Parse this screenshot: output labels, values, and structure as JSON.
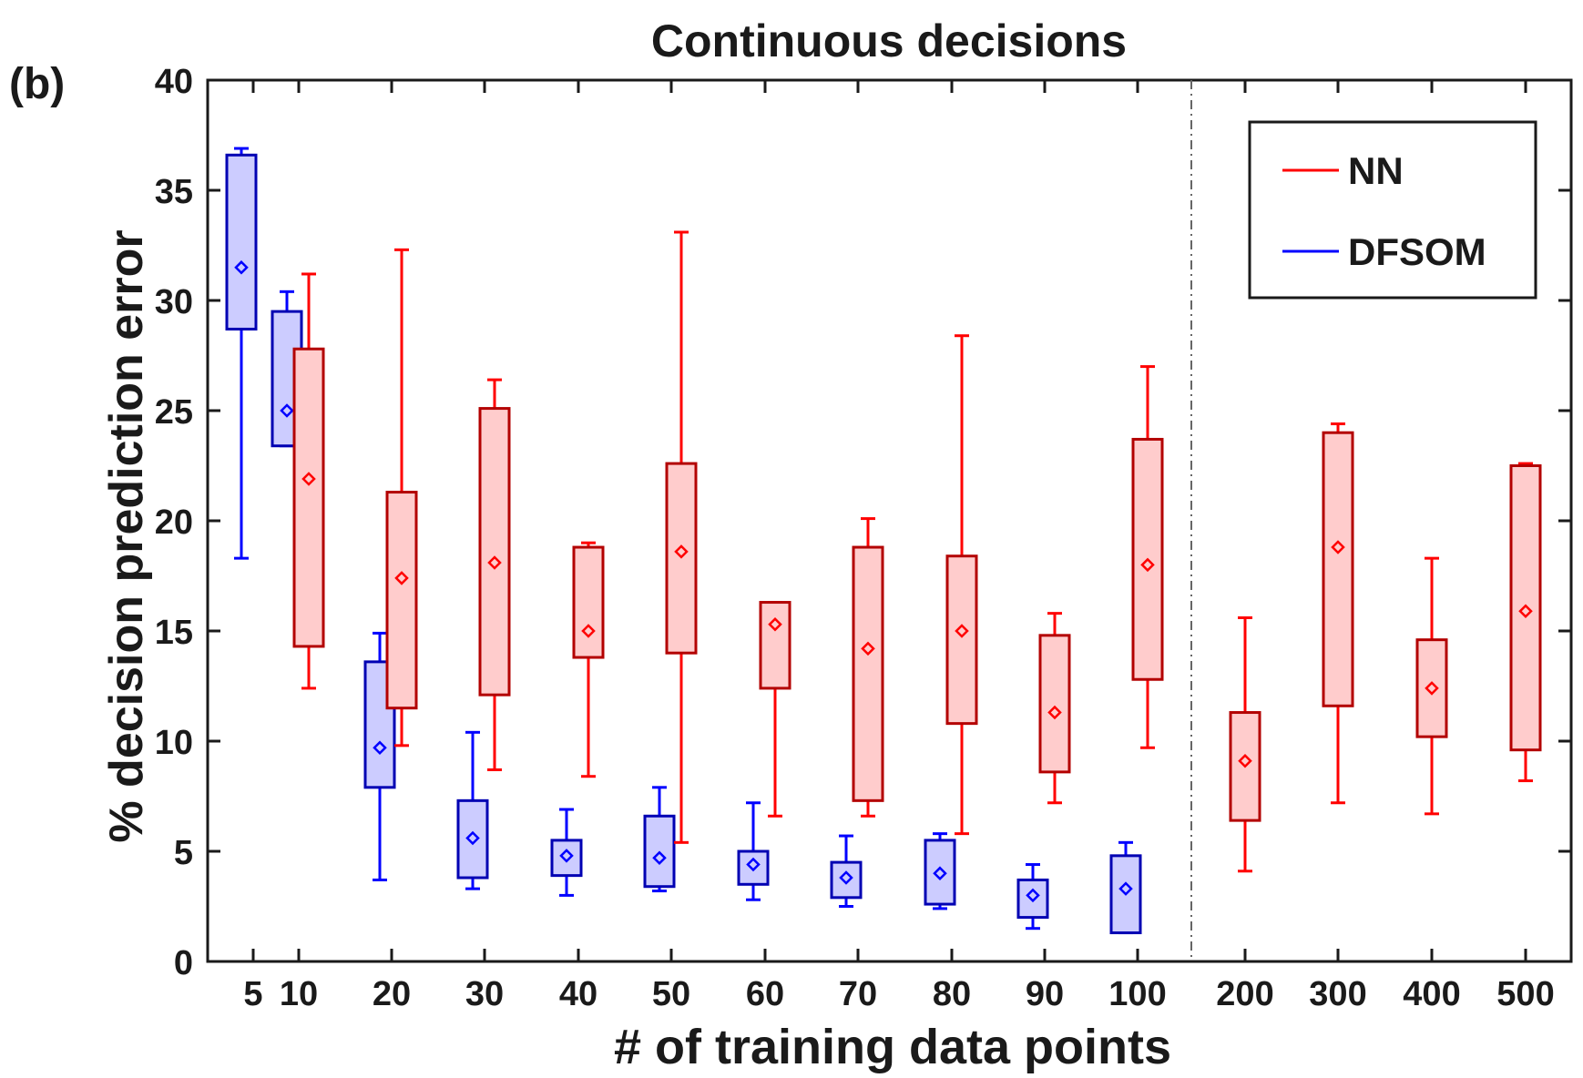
{
  "chart_data": {
    "type": "box",
    "panel_label": "(b)",
    "title": "Continuous decisions",
    "xlabel": "# of training data points",
    "ylabel": "% decision prediction error",
    "ylim": [
      0,
      40
    ],
    "yticks": [
      0,
      5,
      10,
      15,
      20,
      25,
      30,
      35,
      40
    ],
    "categories": [
      "5",
      "10",
      "20",
      "30",
      "40",
      "50",
      "60",
      "70",
      "80",
      "90",
      "100",
      "200",
      "300",
      "400",
      "500"
    ],
    "divider_after": "100",
    "colors": {
      "nn": "#ff0000",
      "nn_fill": "#ffcccc",
      "nn_box": "#b30000",
      "dfsom": "#0000ff",
      "dfsom_fill": "#ccccff",
      "dfsom_box": "#0000b3",
      "axis": "#1a1a1a",
      "divider": "#666666"
    },
    "legend": {
      "position": "top-right",
      "entries": [
        "NN",
        "DFSOM"
      ]
    },
    "series": [
      {
        "name": "DFSOM",
        "boxes": [
          {
            "category": "5",
            "whisker_low": 18.3,
            "q1": 28.7,
            "mean": 31.5,
            "q3": 36.6,
            "whisker_high": 36.9
          },
          {
            "category": "10",
            "whisker_low": 23.4,
            "q1": 23.4,
            "mean": 25.0,
            "q3": 29.5,
            "whisker_high": 30.4
          },
          {
            "category": "20",
            "whisker_low": 3.7,
            "q1": 7.9,
            "mean": 9.7,
            "q3": 13.6,
            "whisker_high": 14.9
          },
          {
            "category": "30",
            "whisker_low": 3.3,
            "q1": 3.8,
            "mean": 5.6,
            "q3": 7.3,
            "whisker_high": 10.4
          },
          {
            "category": "40",
            "whisker_low": 3.0,
            "q1": 3.9,
            "mean": 4.8,
            "q3": 5.5,
            "whisker_high": 6.9
          },
          {
            "category": "50",
            "whisker_low": 3.2,
            "q1": 3.4,
            "mean": 4.7,
            "q3": 6.6,
            "whisker_high": 7.9
          },
          {
            "category": "60",
            "whisker_low": 2.8,
            "q1": 3.5,
            "mean": 4.4,
            "q3": 5.0,
            "whisker_high": 7.2
          },
          {
            "category": "70",
            "whisker_low": 2.5,
            "q1": 2.9,
            "mean": 3.8,
            "q3": 4.5,
            "whisker_high": 5.7
          },
          {
            "category": "80",
            "whisker_low": 2.4,
            "q1": 2.6,
            "mean": 4.0,
            "q3": 5.5,
            "whisker_high": 5.8
          },
          {
            "category": "90",
            "whisker_low": 1.5,
            "q1": 2.0,
            "mean": 3.0,
            "q3": 3.7,
            "whisker_high": 4.4
          },
          {
            "category": "100",
            "whisker_low": 1.3,
            "q1": 1.3,
            "mean": 3.3,
            "q3": 4.8,
            "whisker_high": 5.4
          }
        ]
      },
      {
        "name": "NN",
        "boxes": [
          {
            "category": "10",
            "whisker_low": 12.4,
            "q1": 14.3,
            "mean": 21.9,
            "q3": 27.8,
            "whisker_high": 31.2
          },
          {
            "category": "20",
            "whisker_low": 9.8,
            "q1": 11.5,
            "mean": 17.4,
            "q3": 21.3,
            "whisker_high": 32.3
          },
          {
            "category": "30",
            "whisker_low": 8.7,
            "q1": 12.1,
            "mean": 18.1,
            "q3": 25.1,
            "whisker_high": 26.4
          },
          {
            "category": "40",
            "whisker_low": 8.4,
            "q1": 13.8,
            "mean": 15.0,
            "q3": 18.8,
            "whisker_high": 19.0
          },
          {
            "category": "50",
            "whisker_low": 5.4,
            "q1": 14.0,
            "mean": 18.6,
            "q3": 22.6,
            "whisker_high": 33.1
          },
          {
            "category": "60",
            "whisker_low": 6.6,
            "q1": 12.4,
            "mean": 15.3,
            "q3": 16.3,
            "whisker_high": 16.3
          },
          {
            "category": "70",
            "whisker_low": 6.6,
            "q1": 7.3,
            "mean": 14.2,
            "q3": 18.8,
            "whisker_high": 20.1
          },
          {
            "category": "80",
            "whisker_low": 5.8,
            "q1": 10.8,
            "mean": 15.0,
            "q3": 18.4,
            "whisker_high": 28.4
          },
          {
            "category": "90",
            "whisker_low": 7.2,
            "q1": 8.6,
            "mean": 11.3,
            "q3": 14.8,
            "whisker_high": 15.8
          },
          {
            "category": "100",
            "whisker_low": 9.7,
            "q1": 12.8,
            "mean": 18.0,
            "q3": 23.7,
            "whisker_high": 27.0
          },
          {
            "category": "200",
            "whisker_low": 4.1,
            "q1": 6.4,
            "mean": 9.1,
            "q3": 11.3,
            "whisker_high": 15.6
          },
          {
            "category": "300",
            "whisker_low": 7.2,
            "q1": 11.6,
            "mean": 18.8,
            "q3": 24.0,
            "whisker_high": 24.4
          },
          {
            "category": "400",
            "whisker_low": 6.7,
            "q1": 10.2,
            "mean": 12.4,
            "q3": 14.6,
            "whisker_high": 18.3
          },
          {
            "category": "500",
            "whisker_low": 8.2,
            "q1": 9.6,
            "mean": 15.9,
            "q3": 22.5,
            "whisker_high": 22.6
          }
        ]
      }
    ]
  }
}
